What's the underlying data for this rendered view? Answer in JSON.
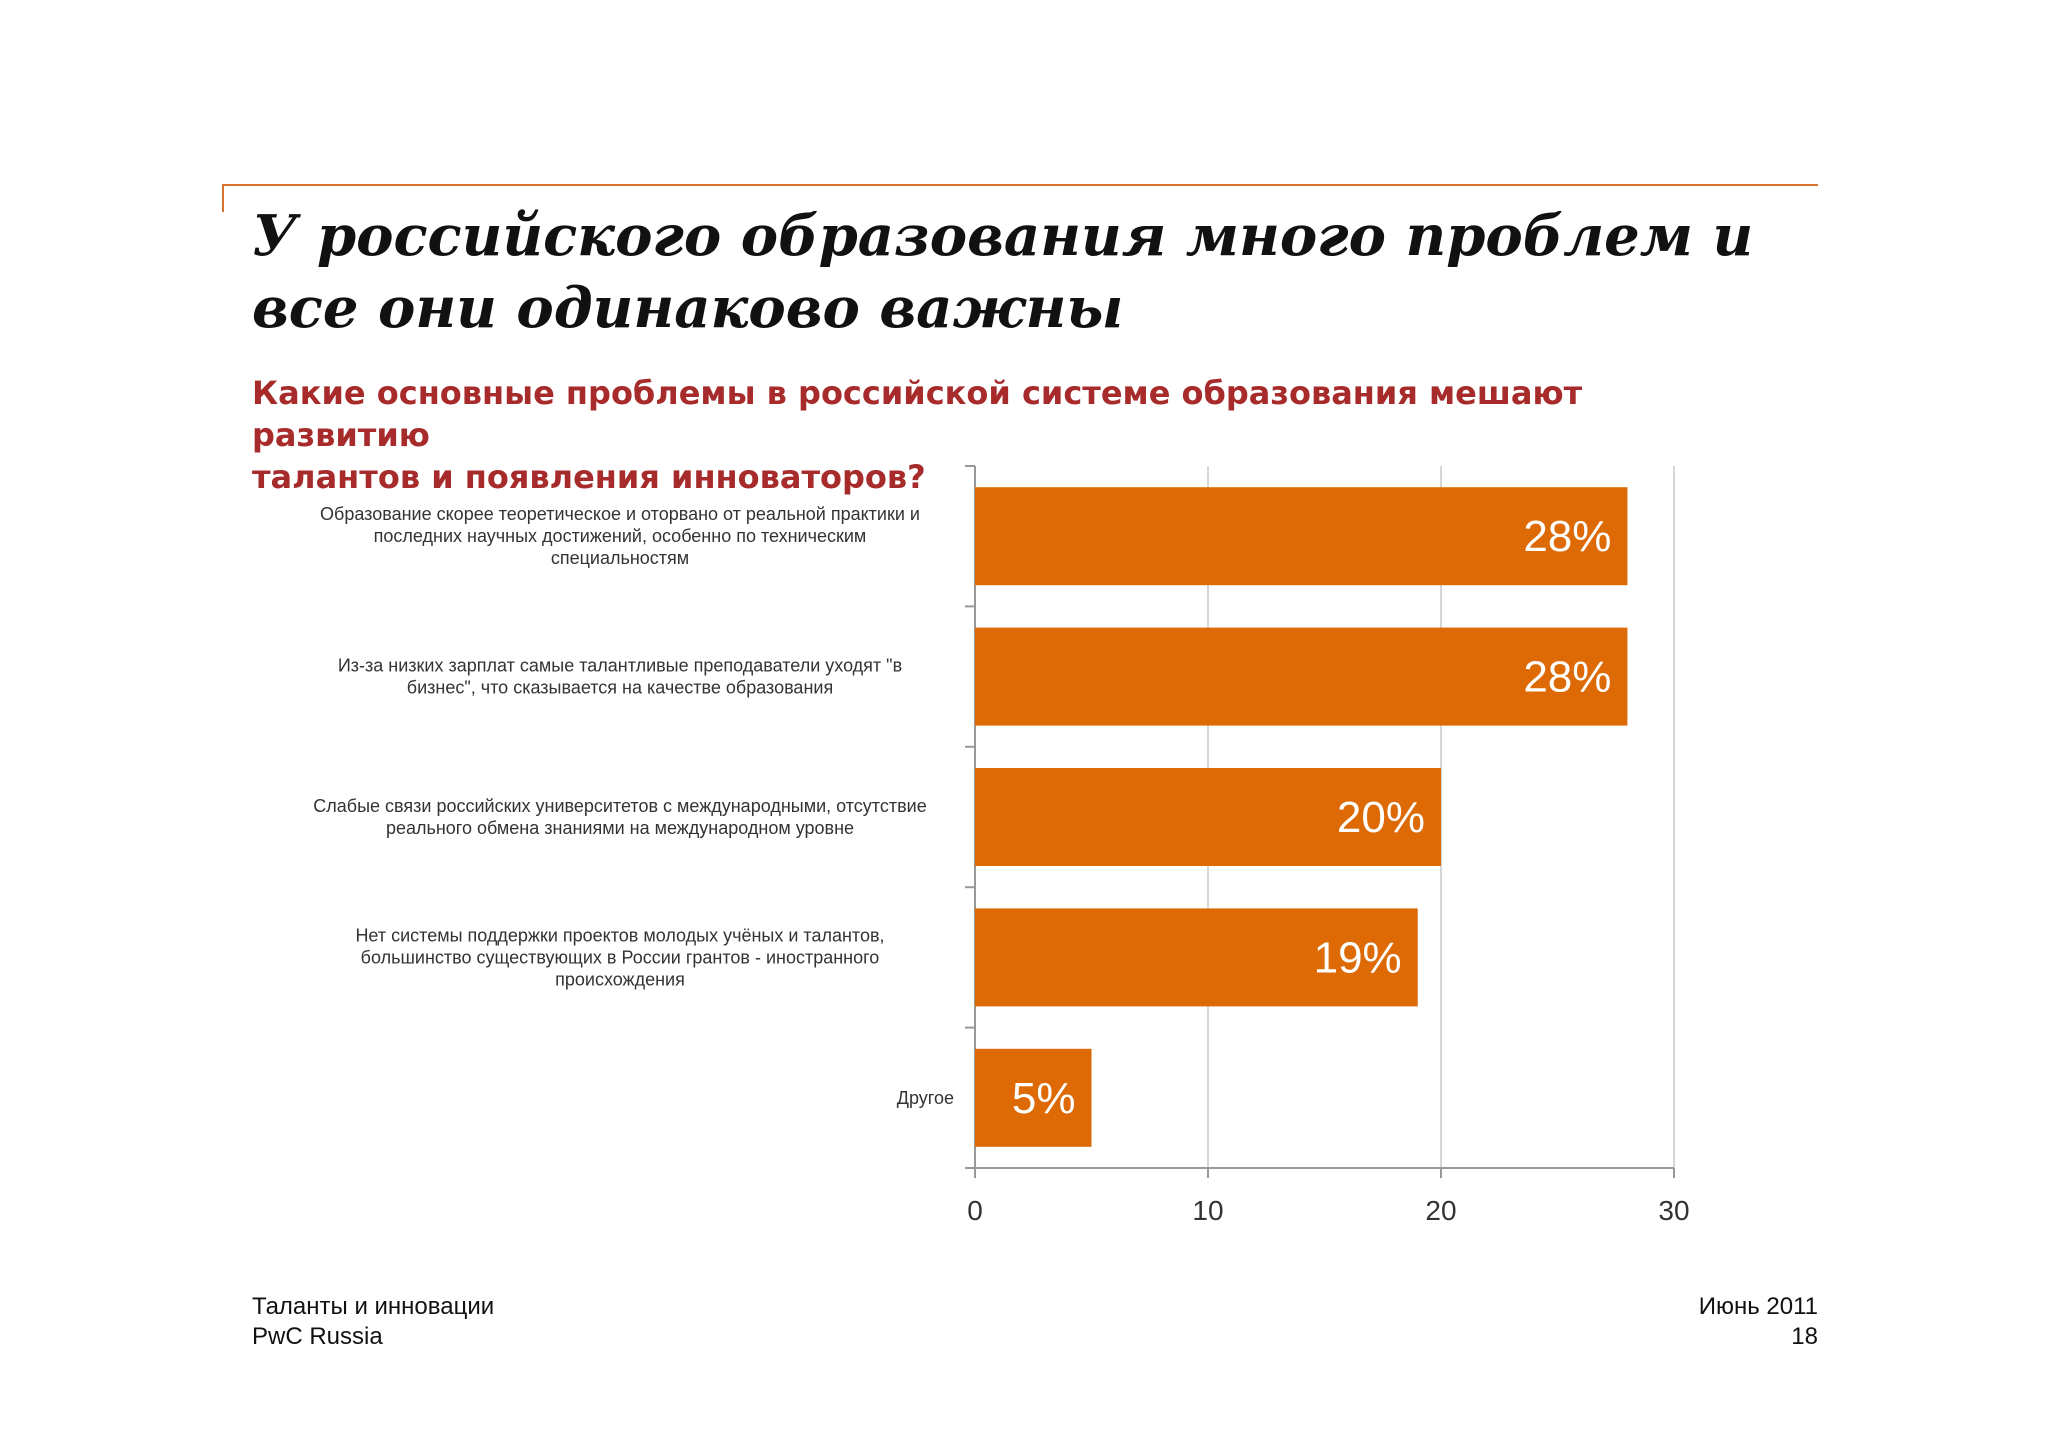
{
  "slide": {
    "title_lines": [
      "У российского образования много проблем и",
      "все они одинаково важны"
    ],
    "accent_color": "#d9722b"
  },
  "footer": {
    "left_line1": "Таланты и инновации",
    "left_line2": "PwC Russia",
    "right_line1": "Июнь 2011",
    "right_line2": "18"
  },
  "chart_data": {
    "type": "bar",
    "orientation": "horizontal",
    "title_lines": [
      "Какие основные проблемы в российской системе образования мешают развитию",
      "талантов и появления инноваторов?"
    ],
    "categories": [
      [
        "Образование скорее теоретическое и оторвано от реальной практики и",
        "последних научных достижений, особенно по техническим",
        "специальностям"
      ],
      [
        "Из-за низких зарплат самые талантливые преподаватели уходят \"в",
        "бизнес\", что сказывается на качестве образования"
      ],
      [
        "Слабые связи российских университетов с международными, отсутствие",
        "реального обмена знаниями на международном уровне"
      ],
      [
        "Нет системы поддержки проектов молодых учёных и талантов,",
        "большинство существующих в России грантов - иностранного",
        "происхождения"
      ],
      [
        "Другое"
      ]
    ],
    "values": [
      28,
      28,
      20,
      19,
      5
    ],
    "data_labels": [
      "28%",
      "28%",
      "20%",
      "19%",
      "5%"
    ],
    "xlim": [
      0,
      30
    ],
    "xticks": [
      0,
      10,
      20,
      30
    ],
    "grid": true,
    "legend": "none",
    "bar_color": "#dd6a05"
  }
}
